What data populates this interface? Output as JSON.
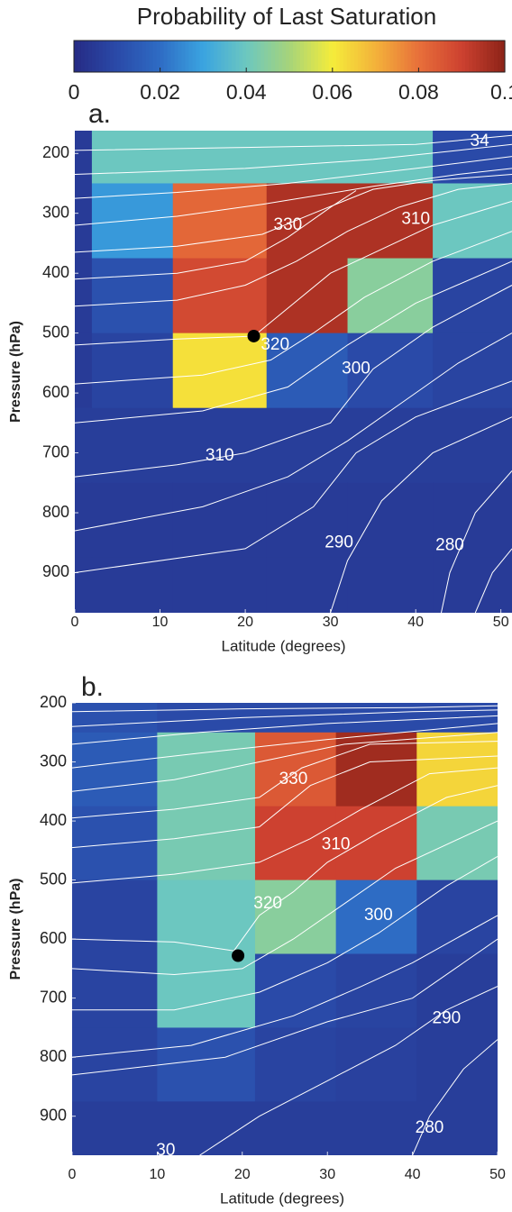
{
  "colorbar": {
    "title": "Probability of Last Saturation",
    "clim": [
      0,
      0.1
    ],
    "ticks": [
      0,
      0.02,
      0.04,
      0.06,
      0.08,
      0.1
    ],
    "colormap": [
      "#262b85",
      "#2a4aa8",
      "#2e6cc4",
      "#3aa4e0",
      "#6cc7c0",
      "#a6d47a",
      "#f5ec3a",
      "#f3b23a",
      "#e8703a",
      "#cd4130",
      "#8c2318"
    ]
  },
  "chart_data": [
    {
      "type": "heatmap",
      "panel_label": "a.",
      "x_label": "Latitude (degrees)",
      "y_label": "Pressure (hPa)",
      "xlim": [
        0,
        51.3
      ],
      "ylim": [
        162,
        967
      ],
      "y_reversed": true,
      "xticks": [
        0,
        10,
        20,
        30,
        40,
        50
      ],
      "yticks": [
        200,
        300,
        400,
        500,
        600,
        700,
        800,
        900
      ],
      "x_edges": [
        0,
        2,
        11.5,
        22.5,
        32,
        42,
        52
      ],
      "y_edges": [
        125,
        250,
        375,
        500,
        625,
        750,
        875,
        1000
      ],
      "z": [
        [
          0.005,
          0.04,
          0.04,
          0.04,
          0.04,
          0.01
        ],
        [
          0.005,
          0.028,
          0.082,
          0.095,
          0.095,
          0.04
        ],
        [
          0.005,
          0.012,
          0.088,
          0.095,
          0.045,
          0.008
        ],
        [
          0.005,
          0.008,
          0.062,
          0.015,
          0.01,
          0.008
        ],
        [
          0.006,
          0.006,
          0.006,
          0.006,
          0.006,
          0.006
        ],
        [
          0.005,
          0.005,
          0.005,
          0.005,
          0.005,
          0.005
        ],
        [
          0.005,
          0.005,
          0.005,
          0.005,
          0.005,
          0.005
        ]
      ],
      "marker": {
        "x": 21,
        "y": 505,
        "color": "#000000"
      },
      "contour_color": "#ffffff",
      "contours": [
        {
          "x": [
            0,
            20,
            40,
            51.3
          ],
          "y": [
            195,
            190,
            185,
            170
          ]
        },
        {
          "x": [
            0,
            20,
            35,
            45,
            51.3
          ],
          "y": [
            235,
            225,
            210,
            195,
            185
          ]
        },
        {
          "x": [
            0,
            12,
            25,
            40,
            51.3
          ],
          "y": [
            275,
            265,
            250,
            225,
            205
          ]
        },
        {
          "x": [
            0,
            12,
            22,
            35,
            45,
            51.3
          ],
          "y": [
            320,
            305,
            285,
            255,
            235,
            225
          ]
        },
        {
          "x": [
            0,
            12,
            22,
            28,
            35,
            42,
            51.3
          ],
          "y": [
            365,
            355,
            335,
            300,
            260,
            245,
            235
          ]
        },
        {
          "x": [
            0,
            12,
            20,
            25,
            30,
            33
          ],
          "y": [
            410,
            400,
            380,
            340,
            290,
            262
          ]
        },
        {
          "x": [
            0,
            12,
            20,
            26,
            32,
            38,
            45,
            51.3
          ],
          "y": [
            455,
            445,
            420,
            380,
            330,
            290,
            260,
            250
          ]
        },
        {
          "x": [
            0,
            12,
            21,
            24,
            30,
            36,
            42,
            51.3
          ],
          "y": [
            520,
            510,
            505,
            470,
            400,
            360,
            320,
            280
          ]
        },
        {
          "x": [
            0,
            15,
            23,
            28,
            34,
            42,
            51.3
          ],
          "y": [
            585,
            570,
            545,
            500,
            440,
            380,
            330
          ]
        },
        {
          "x": [
            0,
            15,
            25,
            32,
            40,
            51.3
          ],
          "y": [
            650,
            630,
            590,
            520,
            450,
            380
          ]
        },
        {
          "x": [
            0,
            12,
            20,
            30,
            35,
            42,
            51.3
          ],
          "y": [
            740,
            720,
            700,
            650,
            560,
            490,
            420
          ]
        },
        {
          "x": [
            0,
            15,
            25,
            32,
            38,
            45,
            51.3
          ],
          "y": [
            830,
            790,
            740,
            680,
            620,
            550,
            500
          ]
        },
        {
          "x": [
            0,
            20,
            28,
            33,
            40,
            51.3
          ],
          "y": [
            900,
            860,
            790,
            700,
            640,
            580
          ]
        },
        {
          "x": [
            30,
            32,
            36,
            42,
            51.3
          ],
          "y": [
            967,
            880,
            780,
            700,
            640
          ]
        },
        {
          "x": [
            43,
            44,
            47,
            51.3
          ],
          "y": [
            967,
            900,
            800,
            730
          ]
        },
        {
          "x": [
            47,
            49,
            51.3
          ],
          "y": [
            967,
            900,
            860
          ]
        }
      ],
      "contour_labels": [
        {
          "text": "34",
          "x": 47.5,
          "y": 180
        },
        {
          "text": "330",
          "x": 25,
          "y": 320
        },
        {
          "text": "310",
          "x": 40,
          "y": 310
        },
        {
          "text": "320",
          "x": 23.5,
          "y": 520
        },
        {
          "text": "300",
          "x": 33,
          "y": 560
        },
        {
          "text": "310",
          "x": 17,
          "y": 705
        },
        {
          "text": "290",
          "x": 31,
          "y": 850
        },
        {
          "text": "280",
          "x": 44,
          "y": 855
        }
      ]
    },
    {
      "type": "heatmap",
      "panel_label": "b.",
      "x_label": "Latitude (degrees)",
      "y_label": "Pressure (hPa)",
      "xlim": [
        0,
        50
      ],
      "ylim": [
        200,
        966
      ],
      "y_reversed": true,
      "xticks": [
        0,
        10,
        20,
        30,
        40,
        50
      ],
      "yticks": [
        200,
        300,
        400,
        500,
        600,
        700,
        800,
        900
      ],
      "x_edges": [
        0,
        10,
        21.5,
        31,
        40.5,
        50
      ],
      "y_edges": [
        200,
        250,
        375,
        500,
        625,
        750,
        875,
        1000
      ],
      "z": [
        [
          0.012,
          0.01,
          0.01,
          0.01,
          0.01
        ],
        [
          0.015,
          0.042,
          0.085,
          0.097,
          0.064
        ],
        [
          0.012,
          0.042,
          0.09,
          0.09,
          0.042
        ],
        [
          0.008,
          0.04,
          0.045,
          0.02,
          0.008
        ],
        [
          0.008,
          0.04,
          0.01,
          0.008,
          0.006
        ],
        [
          0.008,
          0.012,
          0.008,
          0.007,
          0.006
        ],
        [
          0.006,
          0.006,
          0.006,
          0.006,
          0.006
        ]
      ],
      "marker": {
        "x": 19.5,
        "y": 628,
        "color": "#000000"
      },
      "contour_color": "#ffffff",
      "contours": [
        {
          "x": [
            0,
            20,
            40,
            50
          ],
          "y": [
            215,
            210,
            208,
            205
          ]
        },
        {
          "x": [
            0,
            20,
            40,
            50
          ],
          "y": [
            240,
            225,
            215,
            212
          ]
        },
        {
          "x": [
            0,
            15,
            30,
            50
          ],
          "y": [
            270,
            250,
            235,
            222
          ]
        },
        {
          "x": [
            0,
            15,
            30,
            50
          ],
          "y": [
            310,
            285,
            262,
            235
          ]
        },
        {
          "x": [
            0,
            12,
            22,
            32,
            50
          ],
          "y": [
            350,
            330,
            300,
            270,
            250
          ]
        },
        {
          "x": [
            0,
            12,
            22,
            27,
            35,
            50
          ],
          "y": [
            395,
            380,
            360,
            310,
            270,
            265
          ]
        },
        {
          "x": [
            0,
            12,
            22,
            28,
            35,
            50
          ],
          "y": [
            445,
            430,
            410,
            340,
            300,
            290
          ]
        },
        {
          "x": [
            0,
            12,
            22,
            28,
            34,
            42,
            50
          ],
          "y": [
            505,
            490,
            470,
            430,
            380,
            320,
            310
          ]
        },
        {
          "x": [
            0,
            12,
            19,
            22,
            26,
            30,
            36,
            44,
            50
          ],
          "y": [
            600,
            605,
            620,
            560,
            520,
            470,
            420,
            360,
            340
          ]
        },
        {
          "x": [
            0,
            12,
            20,
            26,
            32,
            38,
            50
          ],
          "y": [
            650,
            660,
            650,
            600,
            540,
            480,
            400
          ]
        },
        {
          "x": [
            0,
            12,
            22,
            30,
            36,
            44,
            50
          ],
          "y": [
            720,
            720,
            690,
            640,
            590,
            510,
            460
          ]
        },
        {
          "x": [
            0,
            14,
            26,
            34,
            40,
            50
          ],
          "y": [
            800,
            780,
            730,
            680,
            640,
            560
          ]
        },
        {
          "x": [
            0,
            18,
            30,
            40,
            46,
            50
          ],
          "y": [
            830,
            800,
            740,
            700,
            640,
            600
          ]
        },
        {
          "x": [
            15,
            22,
            30,
            38,
            44,
            50
          ],
          "y": [
            966,
            900,
            840,
            780,
            720,
            680
          ]
        },
        {
          "x": [
            40,
            42,
            46,
            50
          ],
          "y": [
            966,
            900,
            820,
            770
          ]
        }
      ],
      "contour_labels": [
        {
          "text": "330",
          "x": 26,
          "y": 330
        },
        {
          "text": "310",
          "x": 31,
          "y": 440
        },
        {
          "text": "320",
          "x": 23,
          "y": 540
        },
        {
          "text": "300",
          "x": 36,
          "y": 560
        },
        {
          "text": "290",
          "x": 44,
          "y": 735
        },
        {
          "text": "280",
          "x": 42,
          "y": 920
        },
        {
          "text": "30",
          "x": 11,
          "y": 958
        }
      ]
    }
  ]
}
